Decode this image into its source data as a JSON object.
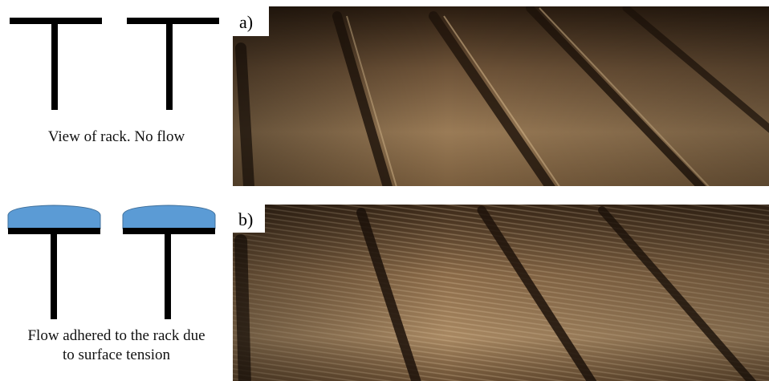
{
  "panels": [
    {
      "label": "a)",
      "caption": [
        "View of rack. No flow"
      ]
    },
    {
      "label": "b)",
      "caption": [
        "Flow adhered to the rack due",
        "to surface tension"
      ]
    }
  ]
}
